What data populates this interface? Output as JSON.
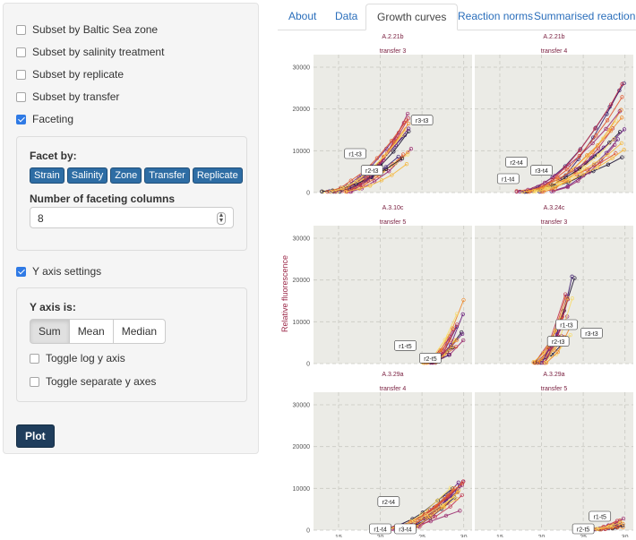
{
  "sidebar": {
    "checkboxes": {
      "baltic": "Subset by Baltic Sea zone",
      "salinity": "Subset by salinity treatment",
      "replicate": "Subset by replicate",
      "transfer": "Subset by transfer",
      "faceting": "Faceting"
    },
    "facet": {
      "title": "Facet by:",
      "chips": [
        "Strain",
        "Salinity",
        "Zone",
        "Transfer",
        "Replicate"
      ],
      "columns_label": "Number of faceting columns",
      "columns_value": "8"
    },
    "yaxis": {
      "toggle_label": "Y axis settings",
      "title": "Y axis is:",
      "options": [
        "Sum",
        "Mean",
        "Median"
      ],
      "selected": "Sum",
      "log_label": "Toggle log y axis",
      "separate_label": "Toggle separate y axes"
    },
    "plot_button": "Plot"
  },
  "tabs": [
    "About",
    "Data",
    "Growth curves",
    "Reaction norms",
    "Summarised reaction n"
  ],
  "active_tab": "Growth curves",
  "chart_data": {
    "type": "line",
    "ylabel": "Relative fluorescence",
    "x_ticks": [
      15,
      20,
      25,
      30
    ],
    "y_ticks": [
      "0",
      "10000",
      "20000",
      "30000"
    ],
    "xlim": [
      12,
      31
    ],
    "ylim": [
      0,
      33000
    ],
    "grid": true,
    "panels": [
      {
        "strain": "A.2.21b",
        "transfer": "transfer 3",
        "labels": [
          "r1-t3",
          "r2-t3",
          "r3-t3"
        ]
      },
      {
        "strain": "A.2.21b",
        "transfer": "transfer 4",
        "labels": [
          "r2-t4",
          "r1-t4",
          "r3-t4"
        ]
      },
      {
        "strain": "A.3.10c",
        "transfer": "transfer 5",
        "labels": [
          "r1-t5",
          "r2-t5"
        ]
      },
      {
        "strain": "A.3.24c",
        "transfer": "transfer 3",
        "labels": [
          "r1-t3",
          "r3-t3",
          "r2-t3"
        ]
      },
      {
        "strain": "A.3.29a",
        "transfer": "transfer 4",
        "labels": [
          "r2-t4",
          "r1-t4",
          "r3-t4"
        ]
      },
      {
        "strain": "A.3.29a",
        "transfer": "transfer 5",
        "labels": [
          "r1-t5",
          "r2-t5"
        ]
      }
    ],
    "colors": [
      "#1a1030",
      "#3b1a6b",
      "#6a1f80",
      "#9a2a6e",
      "#c2364f",
      "#e0552e",
      "#ef8a2a",
      "#f5b83d",
      "#f7dc6c"
    ]
  }
}
